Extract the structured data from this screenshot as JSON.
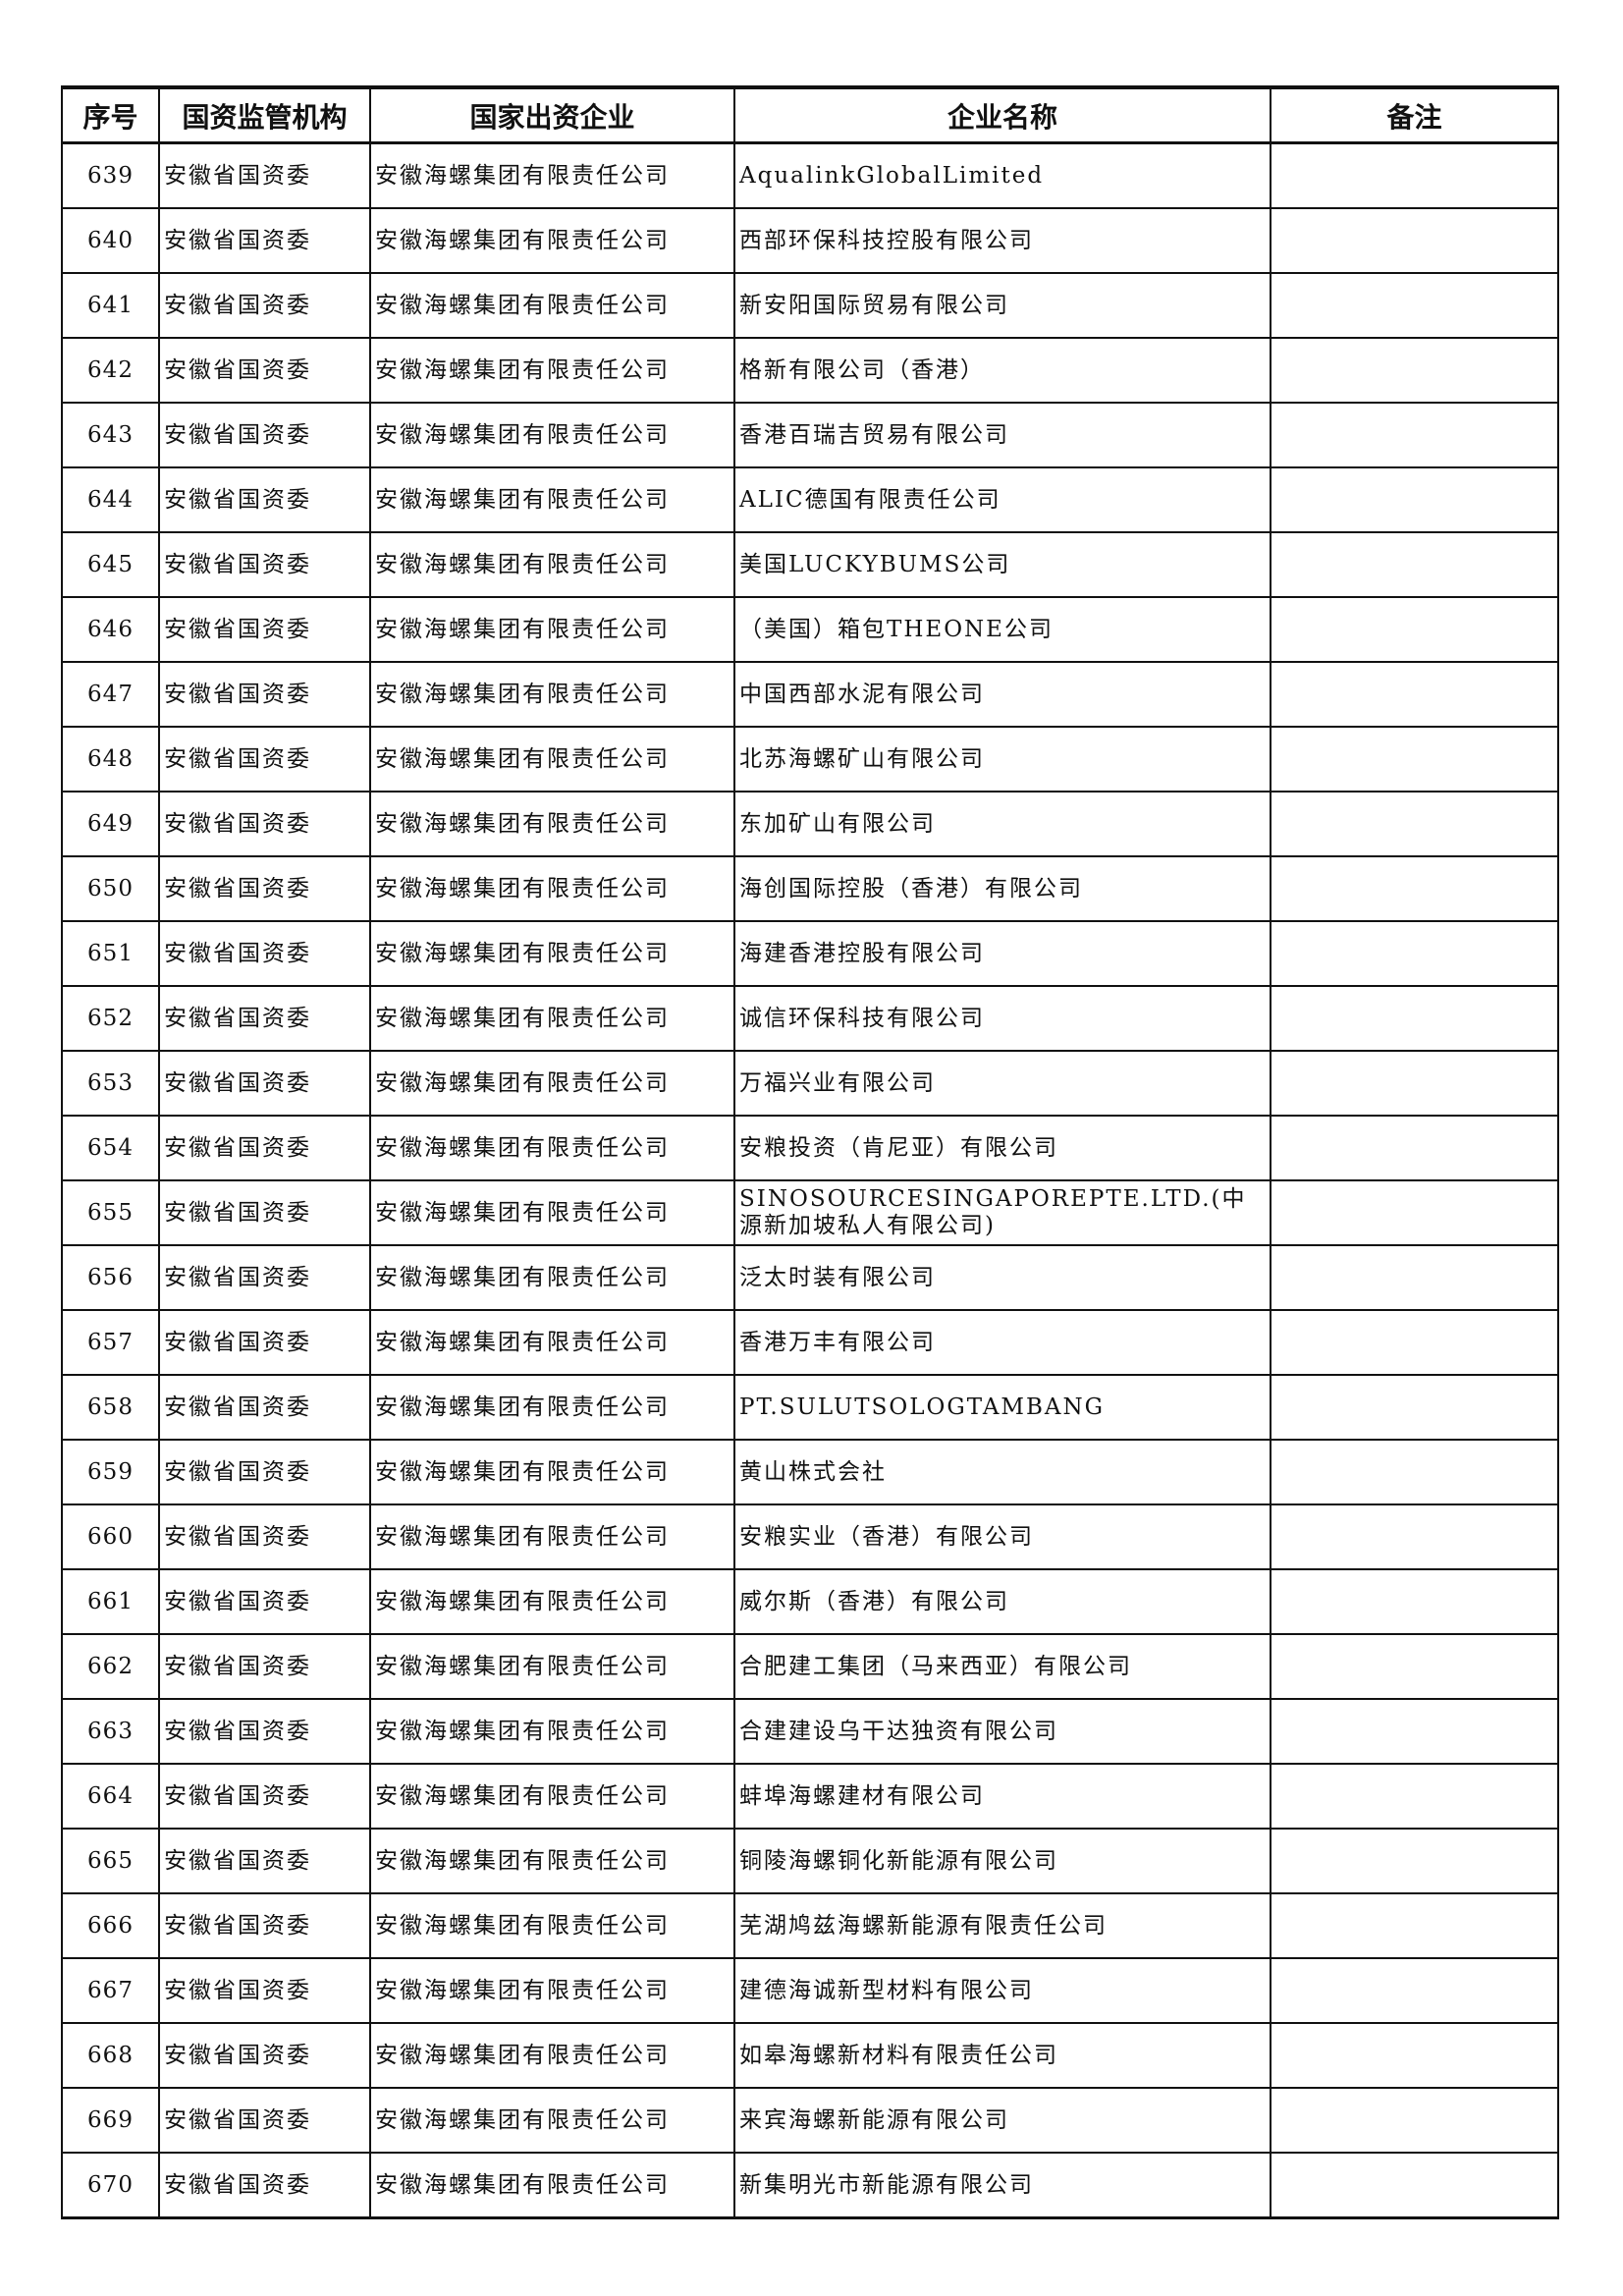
{
  "table": {
    "headers": [
      "序号",
      "国资监管机构",
      "国家出资企业",
      "企业名称",
      "备注"
    ],
    "rows": [
      {
        "no": "639",
        "regulator": "安徽省国资委",
        "parent": "安徽海螺集团有限责任公司",
        "name": "AqualinkGlobalLimited",
        "note": ""
      },
      {
        "no": "640",
        "regulator": "安徽省国资委",
        "parent": "安徽海螺集团有限责任公司",
        "name": "西部环保科技控股有限公司",
        "note": ""
      },
      {
        "no": "641",
        "regulator": "安徽省国资委",
        "parent": "安徽海螺集团有限责任公司",
        "name": "新安阳国际贸易有限公司",
        "note": ""
      },
      {
        "no": "642",
        "regulator": "安徽省国资委",
        "parent": "安徽海螺集团有限责任公司",
        "name": "格新有限公司（香港）",
        "note": ""
      },
      {
        "no": "643",
        "regulator": "安徽省国资委",
        "parent": "安徽海螺集团有限责任公司",
        "name": "香港百瑞吉贸易有限公司",
        "note": ""
      },
      {
        "no": "644",
        "regulator": "安徽省国资委",
        "parent": "安徽海螺集团有限责任公司",
        "name": "ALIC德国有限责任公司",
        "note": ""
      },
      {
        "no": "645",
        "regulator": "安徽省国资委",
        "parent": "安徽海螺集团有限责任公司",
        "name": "美国LUCKYBUMS公司",
        "note": ""
      },
      {
        "no": "646",
        "regulator": "安徽省国资委",
        "parent": "安徽海螺集团有限责任公司",
        "name": "（美国）箱包THEONE公司",
        "note": ""
      },
      {
        "no": "647",
        "regulator": "安徽省国资委",
        "parent": "安徽海螺集团有限责任公司",
        "name": "中国西部水泥有限公司",
        "note": ""
      },
      {
        "no": "648",
        "regulator": "安徽省国资委",
        "parent": "安徽海螺集团有限责任公司",
        "name": "北苏海螺矿山有限公司",
        "note": ""
      },
      {
        "no": "649",
        "regulator": "安徽省国资委",
        "parent": "安徽海螺集团有限责任公司",
        "name": "东加矿山有限公司",
        "note": ""
      },
      {
        "no": "650",
        "regulator": "安徽省国资委",
        "parent": "安徽海螺集团有限责任公司",
        "name": "海创国际控股（香港）有限公司",
        "note": ""
      },
      {
        "no": "651",
        "regulator": "安徽省国资委",
        "parent": "安徽海螺集团有限责任公司",
        "name": "海建香港控股有限公司",
        "note": ""
      },
      {
        "no": "652",
        "regulator": "安徽省国资委",
        "parent": "安徽海螺集团有限责任公司",
        "name": "诚信环保科技有限公司",
        "note": ""
      },
      {
        "no": "653",
        "regulator": "安徽省国资委",
        "parent": "安徽海螺集团有限责任公司",
        "name": "万福兴业有限公司",
        "note": ""
      },
      {
        "no": "654",
        "regulator": "安徽省国资委",
        "parent": "安徽海螺集团有限责任公司",
        "name": "安粮投资（肯尼亚）有限公司",
        "note": ""
      },
      {
        "no": "655",
        "regulator": "安徽省国资委",
        "parent": "安徽海螺集团有限责任公司",
        "name": "SINOSOURCESINGAPOREPTE.LTD.(中源新加坡私人有限公司)",
        "note": ""
      },
      {
        "no": "656",
        "regulator": "安徽省国资委",
        "parent": "安徽海螺集团有限责任公司",
        "name": "泛太时装有限公司",
        "note": ""
      },
      {
        "no": "657",
        "regulator": "安徽省国资委",
        "parent": "安徽海螺集团有限责任公司",
        "name": "香港万丰有限公司",
        "note": ""
      },
      {
        "no": "658",
        "regulator": "安徽省国资委",
        "parent": "安徽海螺集团有限责任公司",
        "name": "PT.SULUTSOLOGTAMBANG",
        "note": ""
      },
      {
        "no": "659",
        "regulator": "安徽省国资委",
        "parent": "安徽海螺集团有限责任公司",
        "name": "黄山株式会社",
        "note": ""
      },
      {
        "no": "660",
        "regulator": "安徽省国资委",
        "parent": "安徽海螺集团有限责任公司",
        "name": "安粮实业（香港）有限公司",
        "note": ""
      },
      {
        "no": "661",
        "regulator": "安徽省国资委",
        "parent": "安徽海螺集团有限责任公司",
        "name": "威尔斯（香港）有限公司",
        "note": ""
      },
      {
        "no": "662",
        "regulator": "安徽省国资委",
        "parent": "安徽海螺集团有限责任公司",
        "name": "合肥建工集团（马来西亚）有限公司",
        "note": ""
      },
      {
        "no": "663",
        "regulator": "安徽省国资委",
        "parent": "安徽海螺集团有限责任公司",
        "name": "合建建设乌干达独资有限公司",
        "note": ""
      },
      {
        "no": "664",
        "regulator": "安徽省国资委",
        "parent": "安徽海螺集团有限责任公司",
        "name": "蚌埠海螺建材有限公司",
        "note": ""
      },
      {
        "no": "665",
        "regulator": "安徽省国资委",
        "parent": "安徽海螺集团有限责任公司",
        "name": "铜陵海螺铜化新能源有限公司",
        "note": ""
      },
      {
        "no": "666",
        "regulator": "安徽省国资委",
        "parent": "安徽海螺集团有限责任公司",
        "name": "芜湖鸠兹海螺新能源有限责任公司",
        "note": ""
      },
      {
        "no": "667",
        "regulator": "安徽省国资委",
        "parent": "安徽海螺集团有限责任公司",
        "name": "建德海诚新型材料有限公司",
        "note": ""
      },
      {
        "no": "668",
        "regulator": "安徽省国资委",
        "parent": "安徽海螺集团有限责任公司",
        "name": "如皋海螺新材料有限责任公司",
        "note": ""
      },
      {
        "no": "669",
        "regulator": "安徽省国资委",
        "parent": "安徽海螺集团有限责任公司",
        "name": "来宾海螺新能源有限公司",
        "note": ""
      },
      {
        "no": "670",
        "regulator": "安徽省国资委",
        "parent": "安徽海螺集团有限责任公司",
        "name": "新集明光市新能源有限公司",
        "note": ""
      }
    ]
  }
}
